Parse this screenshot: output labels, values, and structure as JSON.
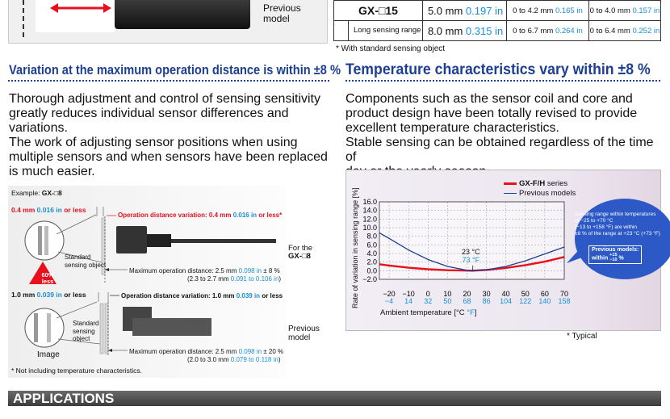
{
  "top_left": {
    "previous_model_line1": "Previous",
    "previous_model_line2": "model"
  },
  "spec_table": {
    "rows": [
      {
        "model": "GX-□15",
        "distance": "5.0 mm",
        "distance_in": "0.197 in",
        "range_a": "0 to 4.2 mm",
        "range_a_in": "0.165 in",
        "range_b": "0 to 4.0 mm",
        "range_b_in": "0.157 in"
      },
      {
        "model": "Long sensing range",
        "distance": "8.0 mm",
        "distance_in": "0.315 in",
        "range_a": "0 to 6.7 mm",
        "range_a_in": "0.264 in",
        "range_b": "0 to 6.4 mm",
        "range_b_in": "0.252 in"
      }
    ],
    "footnote": "* With standard sensing object"
  },
  "left_section": {
    "heading": "Variation at the maximum operation distance is within ±8 %",
    "paragraph": [
      "Thorough adjustment and control of sensing sensitivity",
      "greatly reduces individual sensor differences and",
      "variations.",
      "The work of adjusting sensor positions when using",
      "multiple sensors and when sensors have been replaced",
      "is much easier."
    ]
  },
  "right_section": {
    "heading": "Temperature characteristics vary within ±8 %",
    "paragraph": [
      "Components such as the sensor coil and core and",
      "product design have been totally revised to provide",
      "excellent temperature characteristics.",
      "Stable sensing can be obtained regardless of the time of",
      "day or the yearly season."
    ],
    "typical_note": "* Typical"
  },
  "diagram": {
    "example_prefix": "Example: ",
    "example_model": "GX-□8",
    "new_variation": {
      "mm": "0.4 mm",
      "in": "0.016 in",
      "suffix": "or less"
    },
    "new_op_label": "Operation distance variation: 0.4 mm",
    "new_op_in": "0.016 in",
    "new_op_suffix": "or less*",
    "std_object_1": [
      "Standard",
      "sensing object"
    ],
    "badge_pct": "60%",
    "badge_less": "less",
    "for_the": "For the",
    "for_model": "GX-□8",
    "new_max_line1_prefix": "Maximum operation distance: 2.5 mm ",
    "new_max_line1_in": "0.098 in",
    "new_max_line1_suffix": " ± 8 %",
    "new_max_line2_prefix": "(2.3 to 2.7 mm ",
    "new_max_line2_in": "0.091 to 0.106 in",
    "new_max_line2_suffix": ")",
    "old_variation": {
      "mm": "1.0 mm",
      "in": "0.039 in",
      "suffix": "or less"
    },
    "old_op_label": "Operation distance variation: 1.0 mm",
    "old_op_in": "0.039 in",
    "old_op_suffix": "or less",
    "std_object_2": [
      "Standard",
      "sensing",
      "object"
    ],
    "image_label": "Image",
    "previous_line1": "Previous",
    "previous_line2": "model",
    "old_max_line1_prefix": "Maximum operation distance: 2.5 mm ",
    "old_max_line1_in": "0.098 in",
    "old_max_line1_suffix": " ± 20 %",
    "old_max_line2_prefix": "(2.0 to 3.0 mm ",
    "old_max_line2_in": "0.079 to 0.118 in",
    "old_max_line2_suffix": ")",
    "footnote": "* Not including temperature characteristics."
  },
  "chart_data": {
    "type": "line",
    "ylabel": "Rate of variation in sensing range [%]",
    "xlabel_prefix": "Ambient temperature [°C ",
    "xlabel_f": "°F",
    "xlabel_suffix": "]",
    "xlim": [
      -25,
      70
    ],
    "ylim": [
      -2.0,
      16.0
    ],
    "y_ticks": [
      "16.0",
      "14.0",
      "12.0",
      "10.0",
      "8.0",
      "6.0",
      "4.0",
      "2.0",
      "0.0",
      "−2.0"
    ],
    "y_tick_values": [
      16,
      14,
      12,
      10,
      8,
      6,
      4,
      2,
      0,
      -2
    ],
    "x_ticks_c": [
      "−20",
      "−10",
      "0",
      "10",
      "20",
      "30",
      "40",
      "50",
      "60",
      "70"
    ],
    "x_tick_values": [
      -20,
      -10,
      0,
      10,
      20,
      30,
      40,
      50,
      60,
      70
    ],
    "x_ticks_f": [
      "−4",
      "14",
      "32",
      "50",
      "68",
      "86",
      "104",
      "122",
      "140",
      "158"
    ],
    "legend": [
      {
        "name_bold": "GX-F/H",
        "name_rest": " series",
        "color": "#e8101c"
      },
      {
        "name_bold": "",
        "name_rest": "Previous models",
        "color": "#1c3f94"
      }
    ],
    "ref_label_c": "23 °C",
    "ref_label_f": "73 °F",
    "series": [
      {
        "name": "GX-F/H series",
        "color": "#e8101c",
        "x": [
          -25,
          -20,
          -10,
          0,
          10,
          23,
          30,
          40,
          50,
          60,
          70
        ],
        "y": [
          1.5,
          1.2,
          0.7,
          0.35,
          0.12,
          0.0,
          0.2,
          0.65,
          1.3,
          2.1,
          3.2
        ]
      },
      {
        "name": "Previous models",
        "color": "#1c3f94",
        "x": [
          -25,
          -20,
          -10,
          0,
          10,
          20,
          23,
          30,
          40,
          50,
          60,
          70
        ],
        "y": [
          8.8,
          7.5,
          4.8,
          2.6,
          1.0,
          0.1,
          0.0,
          0.2,
          1.0,
          2.3,
          3.9,
          5.5
        ]
      }
    ],
    "callout": {
      "line1": "Sensing range within temperatures",
      "line2": "of −25 to +70 °C",
      "line3": "(−13  to +158 °F) are within",
      "line4": "±8 % of the range at +23 °C (+73 °F)",
      "prev_label": "Previous models:",
      "prev_within": "within ",
      "prev_plus": "+15",
      "prev_minus": "−10",
      "prev_pct": " %"
    }
  },
  "applications": {
    "title": "APPLICATIONS"
  }
}
